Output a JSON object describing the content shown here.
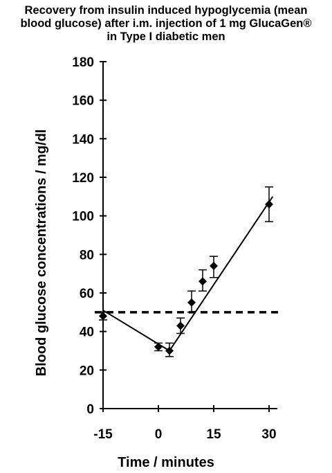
{
  "chart_data": {
    "type": "line",
    "title_lines": [
      "Recovery from insulin induced hypoglycemia (mean",
      "blood glucose) after i.m. injection of 1 mg GlucaGen®",
      "in Type I diabetic men"
    ],
    "xlabel": "Time / minutes",
    "ylabel": "Blood glucose concentrations / mg/dl",
    "xlim": [
      -15,
      30
    ],
    "ylim": [
      0,
      180
    ],
    "x_ticks": [
      -15,
      0,
      15,
      30
    ],
    "y_ticks": [
      0,
      20,
      40,
      60,
      80,
      100,
      120,
      140,
      160,
      180
    ],
    "series": [
      {
        "x": [
          -15,
          0,
          3,
          6,
          9,
          12,
          15,
          30
        ],
        "y": [
          48,
          32,
          30,
          43,
          55,
          66,
          74,
          106
        ],
        "err_low": [
          46,
          30,
          27,
          39,
          50,
          61,
          68,
          97
        ],
        "err_high": [
          50,
          34,
          34,
          47,
          61,
          72,
          79,
          115
        ]
      }
    ],
    "fit_line": {
      "segments": [
        {
          "x": [
            -15,
            3
          ],
          "y": [
            51,
            30
          ]
        },
        {
          "x": [
            3,
            31
          ],
          "y": [
            30,
            110
          ]
        }
      ]
    },
    "reference_line": {
      "y": 50,
      "style": "dashed"
    },
    "grid": false,
    "legend": "none"
  }
}
